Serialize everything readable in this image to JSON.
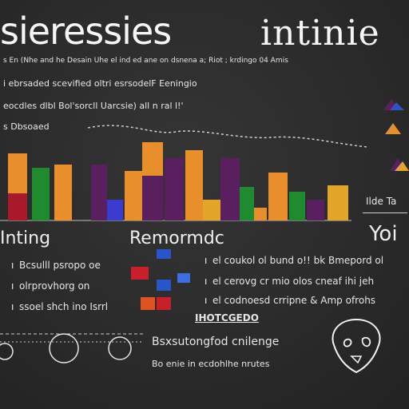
{
  "header": {
    "title_left": "sieressies",
    "title_right": "intinie",
    "subtitle": "s En (Nhe and he Desain Uhe el ind ed ane on dsnena a; Riot ; krdingo 04 Amis"
  },
  "legend_lines": [
    "i ebrsaded scevified oltri esrsodelF Eeningio",
    "eocdles dlbl Bol'sorcll Uarcsie) all n ral l!'",
    "s Dbsoaed"
  ],
  "section_labels": {
    "left": "Inting",
    "middle": "Remormdc",
    "right": "Yoi",
    "side_caption": "Ilde Ta"
  },
  "left_notes": [
    "Bcsulll psropo oe",
    "olrprovhorg on",
    "ssoel shch ino Isrrl"
  ],
  "right_notes": [
    "el coukol ol bund o!! bk Bmepord ol",
    "el cerovg cr mio olos cneaf ihi jeh",
    "el codnoesd crripne & Amp ofrohs"
  ],
  "mid_label": "IHOTCGEDO",
  "bottom_heading": "Bsxsutongfod cnilenge",
  "bottom_sub": "Bo enie in ecdohlhe nrutes",
  "colors": {
    "background": "#2a2a2a",
    "orange": "#e88f2b",
    "purple": "#5a1f5e",
    "green": "#1f8a2e",
    "red": "#a8192c",
    "blue": "#2a55c9",
    "yellow": "#e3a42a"
  },
  "icons": {
    "side": "mountain-icon",
    "bottom_right": "skull-doodle-icon"
  }
}
